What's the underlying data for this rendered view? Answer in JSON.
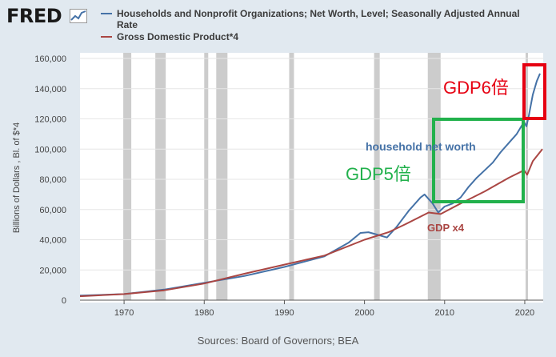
{
  "logo": {
    "text": "FRED"
  },
  "legend": {
    "series1": "Households and Nonprofit Organizations; Net Worth, Level; Seasonally Adjusted Annual Rate",
    "series2": "Gross Domestic Product*4"
  },
  "source": "Sources: Board of Governors; BEA",
  "annotations": {
    "gdp6": "GDP6倍",
    "gdp5": "GDP5倍",
    "networth": "household net worth",
    "gdpx4": "GDP x4"
  },
  "colors": {
    "networth": "#4572a7",
    "gdp": "#aa4643",
    "recession": "#cccccc",
    "green_box": "#22b14c",
    "red_box": "#e60012",
    "gdp6_text": "#e60012",
    "gdp5_text": "#22b14c",
    "networth_text": "#4572a7",
    "gdpx4_text": "#aa4643"
  },
  "chart_data": {
    "type": "line",
    "title": "",
    "xlabel": "",
    "ylabel": "Billions of Dollars , Bl. of $*4",
    "xlim": [
      1964.5,
      2022.3
    ],
    "ylim": [
      0,
      160000
    ],
    "yticks": [
      0,
      20000,
      40000,
      60000,
      80000,
      100000,
      120000,
      140000,
      160000
    ],
    "ytick_labels": [
      "0",
      "20,000",
      "40,000",
      "60,000",
      "80,000",
      "100,000",
      "120,000",
      "140,000",
      "160,000"
    ],
    "xticks": [
      1970,
      1980,
      1990,
      2000,
      2010,
      2020
    ],
    "xtick_labels": [
      "1970",
      "1980",
      "1990",
      "2000",
      "2010",
      "2020"
    ],
    "grid": "horizontal",
    "recessions": [
      [
        1969.9,
        1970.9
      ],
      [
        1973.9,
        1975.2
      ],
      [
        1980.0,
        1980.5
      ],
      [
        1981.5,
        1982.9
      ],
      [
        1990.6,
        1991.2
      ],
      [
        2001.2,
        2001.9
      ],
      [
        2007.9,
        2009.5
      ],
      [
        2020.1,
        2020.4
      ]
    ],
    "series": [
      {
        "name": "Households and Nonprofit Organizations; Net Worth, Level; Seasonally Adjusted Annual Rate",
        "x": [
          1964.5,
          1970,
          1975,
          1980,
          1985,
          1990,
          1995,
          1998,
          1999.5,
          2000.5,
          2001.5,
          2002.8,
          2004,
          2005.5,
          2007,
          2007.5,
          2008.5,
          2009.2,
          2010,
          2011,
          2012,
          2013,
          2014,
          2015,
          2016,
          2017,
          2018,
          2019,
          2019.9,
          2020.2,
          2020.5,
          2021,
          2021.5,
          2021.9
        ],
        "values": [
          3000,
          4000,
          7000,
          11500,
          16000,
          22000,
          29000,
          38000,
          44500,
          45000,
          43500,
          41500,
          48500,
          59000,
          68000,
          70000,
          64000,
          58000,
          62000,
          64000,
          68000,
          75000,
          81000,
          86000,
          91000,
          98000,
          104000,
          110000,
          118000,
          115000,
          122000,
          136000,
          145000,
          150000
        ]
      },
      {
        "name": "Gross Domestic Product*4",
        "x": [
          1964.5,
          1970,
          1975,
          1980,
          1985,
          1990,
          1995,
          2000,
          2003,
          2005,
          2008,
          2009.5,
          2012,
          2015,
          2018,
          2019.9,
          2020.3,
          2021,
          2022.2
        ],
        "values": [
          2600,
          4000,
          6500,
          11000,
          17500,
          23500,
          29500,
          40000,
          45000,
          50000,
          58000,
          57000,
          64000,
          72000,
          81000,
          86000,
          83000,
          92000,
          100000
        ]
      }
    ]
  }
}
